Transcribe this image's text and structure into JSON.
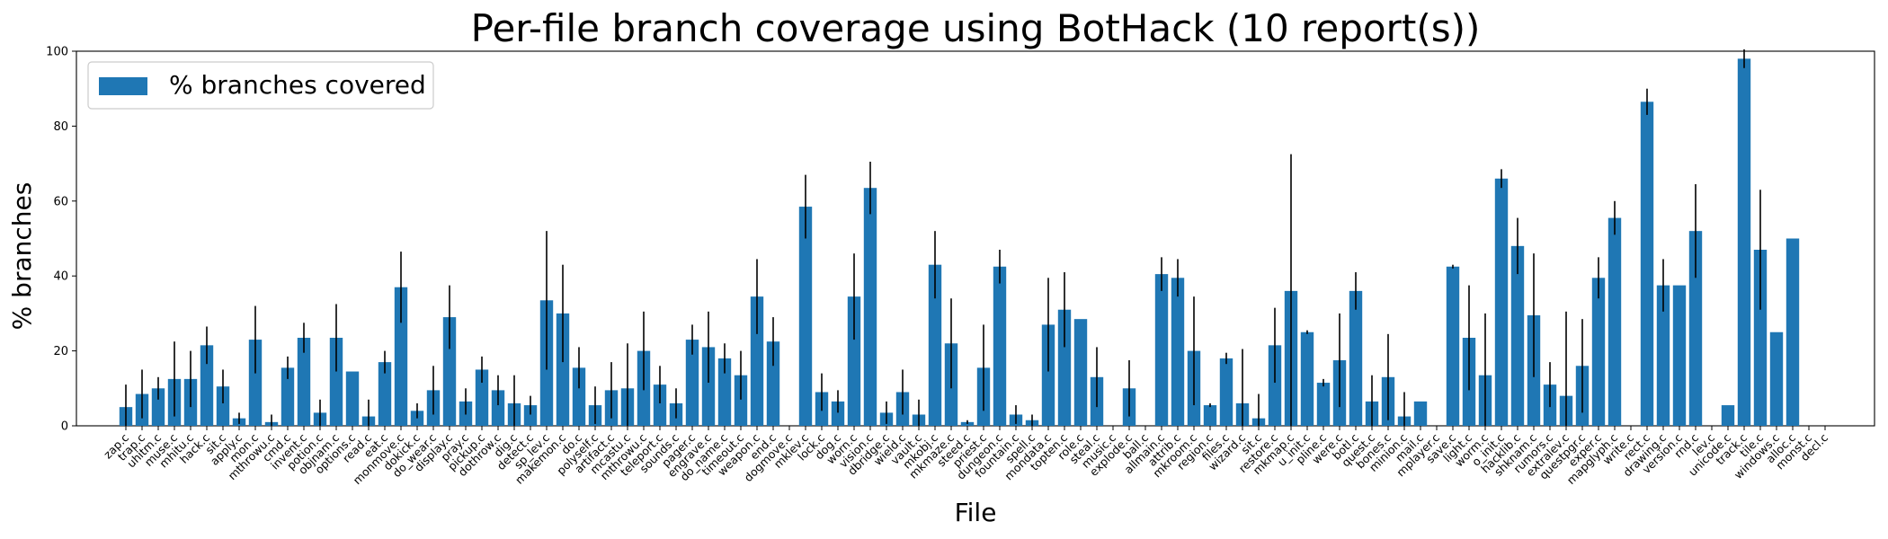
{
  "chart_data": {
    "type": "bar",
    "title": "Per-file branch coverage using BotHack (10 report(s))",
    "xlabel": "File",
    "ylabel": "% branches",
    "ylim": [
      0,
      100
    ],
    "yticks": [
      0,
      20,
      40,
      60,
      80,
      100
    ],
    "legend_position": "top-left",
    "bar_color": "#1f77b4",
    "series": [
      {
        "name": "% branches covered",
        "values": [
          5,
          8.5,
          10,
          12.5,
          12.5,
          21.5,
          10.5,
          2,
          23,
          1,
          15.5,
          23.5,
          3.5,
          23.5,
          14.5,
          2.5,
          17,
          37,
          4,
          9.5,
          29,
          6.5,
          15,
          9.5,
          6,
          5.5,
          33.5,
          30,
          15.5,
          5.5,
          9.5,
          10,
          20,
          11,
          6,
          23,
          21,
          18,
          13.5,
          34.5,
          22.5,
          0,
          58.5,
          9,
          6.5,
          34.5,
          63.5,
          3.5,
          9,
          3,
          43,
          22,
          1,
          15.5,
          42.5,
          3,
          1.5,
          27,
          31,
          28.5,
          13,
          0,
          10,
          0,
          40.5,
          39.5,
          20,
          5.5,
          18,
          6,
          2,
          21.5,
          36,
          25,
          11.5,
          17.5,
          36,
          6.5,
          13,
          2.5,
          6.5,
          0,
          42.5,
          23.5,
          13.5,
          66,
          48,
          29.5,
          11,
          8,
          16,
          39.5,
          55.5,
          0,
          86.5,
          37.5,
          37.5,
          52,
          0,
          5.5,
          98,
          47,
          25,
          50,
          0,
          0
        ],
        "error": [
          6,
          6.5,
          3,
          10,
          7.5,
          5,
          4.5,
          1.5,
          9,
          2,
          3,
          4,
          3.5,
          9,
          0,
          4.5,
          3,
          9.5,
          2,
          6.5,
          8.5,
          3.5,
          3.5,
          4,
          7.5,
          2.5,
          18.5,
          13,
          5.5,
          5,
          7.5,
          12,
          10.5,
          5,
          4,
          4,
          9.5,
          4,
          6.5,
          10,
          6.5,
          0,
          8.5,
          5,
          3,
          11.5,
          7,
          3,
          6,
          4,
          9,
          12,
          0.5,
          11.5,
          4.5,
          2.5,
          1.5,
          12.5,
          10,
          0,
          8,
          0,
          7.5,
          0,
          4.5,
          5,
          14.5,
          0.5,
          1.5,
          14.5,
          6.5,
          10,
          36.5,
          0.5,
          1,
          12.5,
          5,
          7,
          11.5,
          6.5,
          0,
          0,
          0.5,
          14,
          16.5,
          2.5,
          7.5,
          16.5,
          6,
          22.5,
          12.5,
          5.5,
          4.5,
          0,
          3.5,
          7,
          0,
          12.5,
          0,
          0,
          2.5,
          16,
          0,
          0,
          0,
          0
        ]
      }
    ],
    "categories": [
      "zap.c",
      "trap.c",
      "uhitm.c",
      "muse.c",
      "mhitu.c",
      "hack.c",
      "sit.c",
      "apply.c",
      "mon.c",
      "mthrowu.c",
      "cmd.c",
      "invent.c",
      "potion.c",
      "objnam.c",
      "options.c",
      "read.c",
      "eat.c",
      "monmove.c",
      "dokick.c",
      "do_wear.c",
      "display.c",
      "pray.c",
      "pickup.c",
      "dothrow.c",
      "dig.c",
      "detect.c",
      "sp_lev.c",
      "makemon.c",
      "do.c",
      "polyself.c",
      "artifact.c",
      "mcastu.c",
      "mthrowu.c",
      "teleport.c",
      "sounds.c",
      "pager.c",
      "engrave.c",
      "do_name.c",
      "timeout.c",
      "weapon.c",
      "end.c",
      "dogmove.c",
      "mklev.c",
      "lock.c",
      "dog.c",
      "worn.c",
      "vision.c",
      "dbridge.c",
      "wield.c",
      "vault.c",
      "mkobj.c",
      "mkmaze.c",
      "steed.c",
      "priest.c",
      "dungeon.c",
      "fountain.c",
      "spell.c",
      "mondata.c",
      "topten.c",
      "role.c",
      "steal.c",
      "music.c",
      "explode.c",
      "ball.c",
      "allmain.c",
      "attrib.c",
      "mkroom.c",
      "region.c",
      "files.c",
      "wizard.c",
      "sit.c",
      "restore.c",
      "mkmap.c",
      "u_init.c",
      "pline.c",
      "were.c",
      "botl.c",
      "quest.c",
      "bones.c",
      "minion.c",
      "mail.c",
      "mplayer.c",
      "save.c",
      "light.c",
      "worm.c",
      "o_init.c",
      "hacklib.c",
      "shknam.c",
      "rumors.c",
      "extralev.c",
      "questpgr.c",
      "exper.c",
      "mapglyph.c",
      "write.c",
      "rect.c",
      "drawing.c",
      "version.c",
      "rnd.c",
      "lev.c",
      "unicode.c",
      "track.c",
      "tile.c",
      "windows.c",
      "alloc.c",
      "monst.c",
      "decl.c"
    ]
  }
}
